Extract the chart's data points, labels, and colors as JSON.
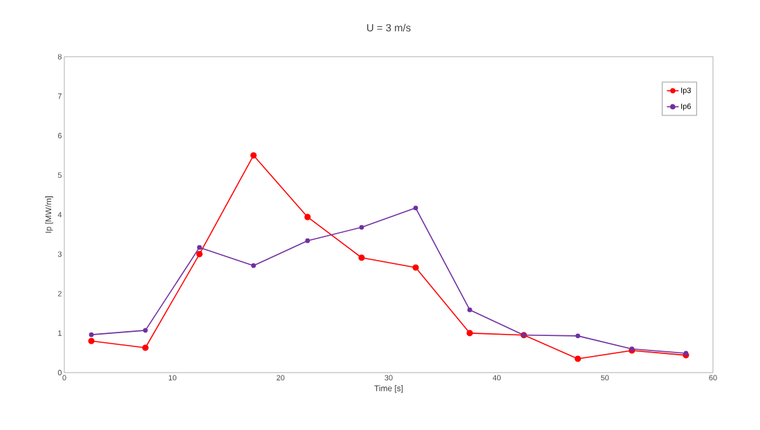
{
  "chart_data": {
    "type": "line",
    "title": "U = 3 m/s",
    "xlabel": "Time [s]",
    "ylabel": "Ip [MW/m]",
    "x": [
      2.5,
      7.5,
      12.5,
      17.5,
      22.5,
      27.5,
      32.5,
      37.5,
      42.5,
      47.5,
      52.5,
      57.5
    ],
    "series": [
      {
        "name": "Ip3",
        "color": "#ff0000",
        "values": [
          0.8,
          0.63,
          3.0,
          5.5,
          3.94,
          2.91,
          2.66,
          1.0,
          0.95,
          0.35,
          0.56,
          0.44
        ]
      },
      {
        "name": "Ip6",
        "color": "#7030a0",
        "values": [
          0.96,
          1.07,
          3.17,
          2.71,
          3.34,
          3.68,
          4.17,
          1.59,
          0.95,
          0.93,
          0.6,
          0.49
        ]
      }
    ],
    "xlim": [
      0,
      60
    ],
    "xticks": [
      0,
      10,
      20,
      30,
      40,
      50,
      60
    ],
    "ylim": [
      0,
      8
    ],
    "yticks": [
      0,
      1,
      2,
      3,
      4,
      5,
      6,
      7,
      8
    ],
    "grid": false,
    "legend": "top right",
    "marker": "circle",
    "line_style": "solid"
  }
}
